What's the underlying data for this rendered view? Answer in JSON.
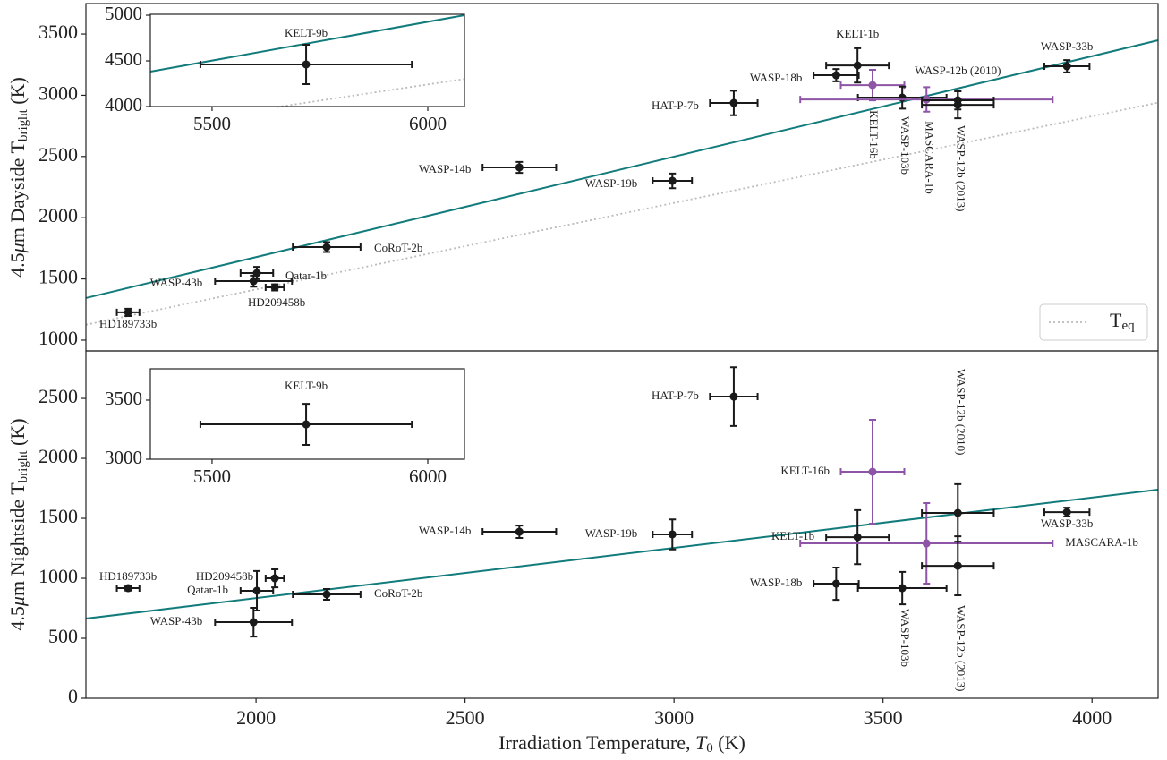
{
  "chart_data": [
    {
      "type": "scatter",
      "ylabel": [
        "4.5",
        "μ",
        "m Dayside T",
        "bright",
        " (K)"
      ],
      "xlim": [
        1593,
        4158
      ],
      "ylim": [
        912,
        3749
      ],
      "yticks": [
        1000,
        1500,
        2000,
        2500,
        3000,
        3500
      ],
      "labels": [
        "HD189733b",
        "WASP-43b",
        "Qatar-1b",
        "HD209458b",
        "CoRoT-2b",
        "WASP-14b",
        "WASP-19b",
        "HAT-P-7b",
        "WASP-18b",
        "KELT-1b",
        "KELT-16b",
        "WASP-103b",
        "MASCARA-1b",
        "WASP-12b (2010)",
        "WASP-12b (2013)",
        "WASP-33b"
      ],
      "x": [
        1694,
        1994,
        2002,
        2045,
        2169,
        2630,
        2996,
        3143,
        3388,
        3439,
        3475,
        3546,
        3604,
        3679,
        3679,
        3940
      ],
      "xerr": [
        27,
        92,
        39,
        22,
        81,
        88,
        47,
        57,
        54,
        75,
        76,
        106,
        302,
        86,
        86,
        54
      ],
      "y": [
        1227,
        1482,
        1548,
        1431,
        1760,
        2411,
        2301,
        2937,
        3164,
        3244,
        3083,
        2981,
        2966,
        2959,
        2922,
        3237
      ],
      "yerr": [
        30,
        45,
        50,
        25,
        40,
        45,
        60,
        100,
        50,
        140,
        125,
        90,
        100,
        75,
        110,
        50
      ],
      "colors": [
        "#1a1a1a",
        "#1a1a1a",
        "#1a1a1a",
        "#1a1a1a",
        "#1a1a1a",
        "#1a1a1a",
        "#1a1a1a",
        "#1a1a1a",
        "#1a1a1a",
        "#1a1a1a",
        "#8e55a6",
        "#1a1a1a",
        "#8e55a6",
        "#1a1a1a",
        "#1a1a1a",
        "#1a1a1a"
      ],
      "fit": {
        "color": "#127b7b",
        "x": [
          1593,
          4158
        ],
        "y": [
          1344,
          3449
        ]
      },
      "teq": {
        "name": [
          "T",
          "eq"
        ],
        "color": "#bbbbbb",
        "x": [
          1593,
          4158
        ],
        "y": [
          1126,
          2940
        ]
      },
      "legend": "lower right",
      "inset": {
        "xlim": [
          5357,
          6085
        ],
        "ylim": [
          4000,
          5010
        ],
        "xticks": [
          5500,
          6000
        ],
        "yticks": [
          4000,
          4500,
          5000
        ],
        "labels": [
          "KELT-9b"
        ],
        "x": [
          5718
        ],
        "xerr": [
          245
        ],
        "y": [
          4461
        ],
        "yerr": [
          216
        ],
        "colors": [
          "#1a1a1a"
        ],
        "fit": {
          "color": "#127b7b",
          "x": [
            5357,
            6085
          ],
          "y": [
            4382,
            5000
          ]
        },
        "teq": {
          "color": "#bbbbbb",
          "x": [
            5651,
            6085
          ],
          "y": [
            3995,
            4302
          ]
        }
      }
    },
    {
      "type": "scatter",
      "ylabel": [
        "4.5",
        "μ",
        "m Nightside T",
        "bright",
        " (K)"
      ],
      "xlabel": [
        "Irradiation Temperature, ",
        "T",
        "0",
        " (K)"
      ],
      "xlim": [
        1593,
        4158
      ],
      "ylim": [
        0,
        2896
      ],
      "xticks": [
        2000,
        2500,
        3000,
        3500,
        4000
      ],
      "yticks": [
        0,
        500,
        1000,
        1500,
        2000,
        2500
      ],
      "labels": [
        "HD189733b",
        "WASP-43b",
        "Qatar-1b",
        "HD209458b",
        "CoRoT-2b",
        "WASP-14b",
        "WASP-19b",
        "HAT-P-7b",
        "WASP-18b",
        "KELT-1b",
        "KELT-16b",
        "WASP-103b",
        "MASCARA-1b",
        "WASP-12b (2010)",
        "WASP-12b (2013)",
        "WASP-33b"
      ],
      "x": [
        1694,
        1994,
        2002,
        2045,
        2169,
        2630,
        2996,
        3143,
        3388,
        3439,
        3475,
        3546,
        3604,
        3679,
        3679,
        3940
      ],
      "xerr": [
        27,
        92,
        39,
        22,
        81,
        88,
        47,
        57,
        54,
        75,
        76,
        106,
        302,
        86,
        86,
        54
      ],
      "y": [
        918,
        634,
        896,
        1000,
        866,
        1388,
        1366,
        2515,
        955,
        1343,
        1888,
        918,
        1291,
        1545,
        1104,
        1552
      ],
      "yerr": [
        20,
        120,
        165,
        75,
        45,
        52,
        125,
        245,
        135,
        225,
        433,
        135,
        336,
        240,
        246,
        37
      ],
      "colors": [
        "#1a1a1a",
        "#1a1a1a",
        "#1a1a1a",
        "#1a1a1a",
        "#1a1a1a",
        "#1a1a1a",
        "#1a1a1a",
        "#1a1a1a",
        "#1a1a1a",
        "#1a1a1a",
        "#8e55a6",
        "#1a1a1a",
        "#8e55a6",
        "#1a1a1a",
        "#1a1a1a",
        "#1a1a1a"
      ],
      "fit": {
        "color": "#127b7b",
        "x": [
          1593,
          4158
        ],
        "y": [
          664,
          1739
        ]
      },
      "inset": {
        "xlim": [
          5357,
          6085
        ],
        "ylim": [
          3000,
          3765
        ],
        "xticks": [
          5500,
          6000
        ],
        "yticks": [
          3000,
          3500
        ],
        "labels": [
          "KELT-9b"
        ],
        "x": [
          5718
        ],
        "xerr": [
          245
        ],
        "y": [
          3295
        ],
        "yerr": [
          174
        ],
        "colors": [
          "#1a1a1a"
        ]
      }
    }
  ]
}
